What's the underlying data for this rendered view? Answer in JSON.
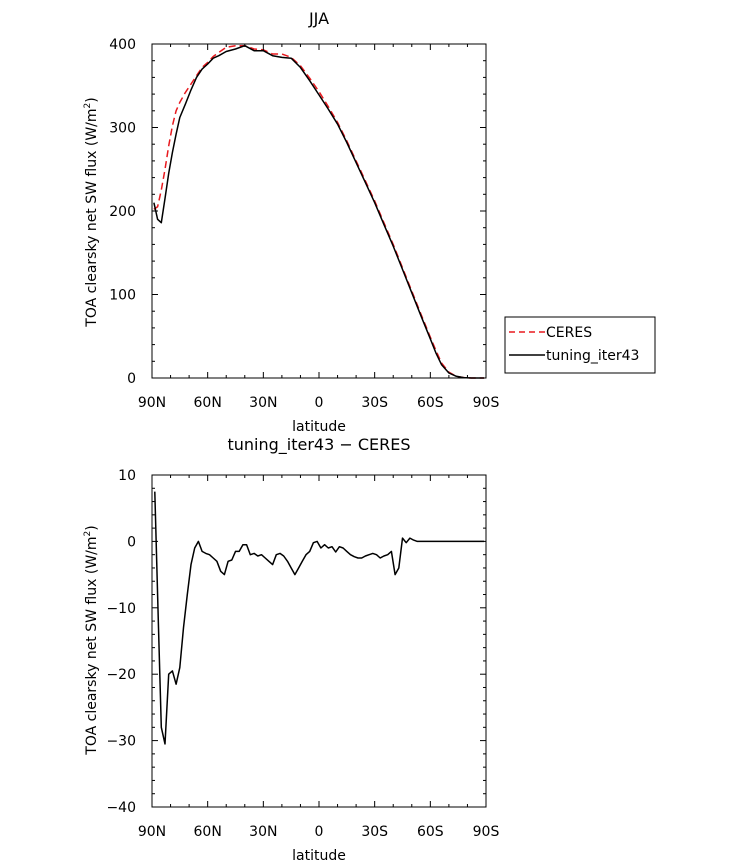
{
  "chart_data": [
    {
      "type": "line",
      "title": "JJA",
      "xlabel": "latitude",
      "ylabel": "TOA clearsky net SW flux (W/m",
      "ylabel_sup": "2",
      "ylabel_end": ")",
      "xlim": [
        90,
        -90
      ],
      "ylim": [
        0,
        400
      ],
      "xticks": [
        90,
        60,
        30,
        0,
        -30,
        -60,
        -90
      ],
      "xticklabels": [
        "90N",
        "60N",
        "30N",
        "0",
        "30S",
        "60S",
        "90S"
      ],
      "yticks": [
        0,
        100,
        200,
        300,
        400
      ],
      "yticklabels": [
        "0",
        "100",
        "200",
        "300",
        "400"
      ],
      "legend_position": "right",
      "series": [
        {
          "name": "CERES",
          "color": "#e8191e",
          "style": "dashed",
          "x": [
            89,
            87,
            85,
            83,
            81,
            79,
            77,
            75,
            72,
            69,
            66,
            63,
            60,
            57,
            54,
            50,
            45,
            40,
            35,
            30,
            25,
            20,
            15,
            10,
            5,
            0,
            -5,
            -10,
            -15,
            -20,
            -25,
            -30,
            -35,
            -40,
            -45,
            -50,
            -55,
            -60,
            -63,
            -66,
            -70,
            -74,
            -78,
            -82,
            -86,
            -89
          ],
          "y": [
            202,
            205,
            225,
            250,
            278,
            302,
            320,
            330,
            342,
            352,
            362,
            372,
            378,
            385,
            390,
            396,
            398,
            398,
            394,
            393,
            388,
            388,
            384,
            374,
            359,
            343,
            325,
            306,
            284,
            260,
            236,
            212,
            186,
            160,
            132,
            104,
            76,
            49,
            33,
            18,
            7,
            2,
            0.5,
            0,
            0,
            0
          ]
        },
        {
          "name": "tuning_iter43",
          "color": "#000000",
          "style": "solid",
          "x": [
            89,
            87,
            85,
            83,
            81,
            79,
            77,
            75,
            72,
            69,
            66,
            63,
            60,
            57,
            54,
            50,
            45,
            40,
            35,
            30,
            25,
            20,
            15,
            10,
            5,
            0,
            -5,
            -10,
            -15,
            -20,
            -25,
            -30,
            -35,
            -40,
            -45,
            -50,
            -55,
            -60,
            -63,
            -66,
            -70,
            -74,
            -78,
            -82,
            -86,
            -89
          ],
          "y": [
            210,
            190,
            186,
            215,
            245,
            270,
            292,
            312,
            328,
            345,
            360,
            370,
            376,
            383,
            386,
            391,
            394,
            398,
            392,
            392,
            386,
            384,
            383,
            372,
            356,
            339,
            322,
            304,
            282,
            258,
            234,
            210,
            184,
            158,
            130,
            102,
            74,
            47,
            30,
            16,
            6,
            2,
            0.5,
            0,
            0,
            0
          ]
        }
      ]
    },
    {
      "type": "line",
      "title": "tuning_iter43 − CERES",
      "xlabel": "latitude",
      "ylabel": "TOA clearsky net SW flux (W/m",
      "ylabel_sup": "2",
      "ylabel_end": ")",
      "xlim": [
        90,
        -90
      ],
      "ylim": [
        -40,
        10
      ],
      "xticks": [
        90,
        60,
        30,
        0,
        -30,
        -60,
        -90
      ],
      "xticklabels": [
        "90N",
        "60N",
        "30N",
        "0",
        "30S",
        "60S",
        "90S"
      ],
      "yticks": [
        10,
        0,
        -10,
        -20,
        -30,
        -40
      ],
      "yticklabels": [
        "10",
        "0",
        "−10",
        "−20",
        "−30",
        "−40"
      ],
      "series": [
        {
          "color": "#000000",
          "style": "solid",
          "x": [
            88.5,
            86.5,
            85,
            83,
            81,
            79,
            77,
            75,
            73,
            71,
            69,
            67,
            65,
            63,
            61,
            59,
            57,
            55,
            53,
            51,
            49,
            47,
            45,
            43,
            41,
            39,
            37,
            35,
            33,
            31,
            29,
            27,
            25,
            23,
            21,
            19,
            17,
            15,
            13,
            11,
            9,
            7,
            5,
            3,
            1,
            -1,
            -3,
            -5,
            -7,
            -9,
            -11,
            -13,
            -15,
            -17,
            -19,
            -21,
            -23,
            -25,
            -27,
            -29,
            -31,
            -33,
            -35,
            -37,
            -39,
            -41,
            -43,
            -45,
            -47,
            -49,
            -51,
            -53,
            -55,
            -57,
            -58.5,
            -60,
            -62,
            -64,
            -66,
            -68,
            -70,
            -72,
            -75,
            -78,
            -82,
            -86,
            -89
          ],
          "y": [
            7.5,
            -13,
            -28,
            -30.5,
            -20,
            -19.5,
            -21.5,
            -19,
            -13,
            -8,
            -3.5,
            -1,
            0,
            -1.5,
            -1.8,
            -2,
            -2.5,
            -3,
            -4.5,
            -5,
            -3,
            -2.8,
            -1.5,
            -1.5,
            -0.5,
            -0.5,
            -2,
            -1.8,
            -2.2,
            -2,
            -2.5,
            -3,
            -3.5,
            -2,
            -1.8,
            -2.2,
            -3,
            -4,
            -5,
            -4,
            -3,
            -2,
            -1.5,
            -0.2,
            0,
            -1,
            -0.5,
            -1,
            -0.8,
            -1.6,
            -0.8,
            -1,
            -1.5,
            -2,
            -2.3,
            -2.5,
            -2.5,
            -2.2,
            -2,
            -1.8,
            -2,
            -2.5,
            -2.2,
            -2,
            -1.5,
            -5,
            -4,
            0.5,
            -0.2,
            0.5,
            0.2,
            0,
            0,
            0,
            0,
            0,
            0,
            0,
            0,
            0,
            0,
            0,
            0,
            0,
            0,
            0,
            0
          ],
          "note": ""
        }
      ]
    }
  ]
}
